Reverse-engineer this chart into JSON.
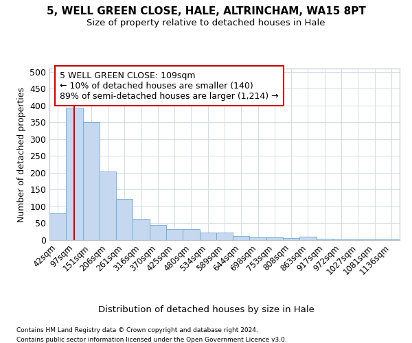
{
  "title1": "5, WELL GREEN CLOSE, HALE, ALTRINCHAM, WA15 8PT",
  "title2": "Size of property relative to detached houses in Hale",
  "xlabel": "Distribution of detached houses by size in Hale",
  "ylabel": "Number of detached properties",
  "footnote1": "Contains HM Land Registry data © Crown copyright and database right 2024.",
  "footnote2": "Contains public sector information licensed under the Open Government Licence v3.0.",
  "bar_labels": [
    "42sqm",
    "97sqm",
    "151sqm",
    "206sqm",
    "261sqm",
    "316sqm",
    "370sqm",
    "425sqm",
    "480sqm",
    "534sqm",
    "589sqm",
    "644sqm",
    "698sqm",
    "753sqm",
    "808sqm",
    "863sqm",
    "917sqm",
    "972sqm",
    "1027sqm",
    "1081sqm",
    "1136sqm"
  ],
  "bar_values": [
    80,
    393,
    350,
    205,
    122,
    63,
    45,
    32,
    32,
    22,
    23,
    13,
    9,
    9,
    7,
    10,
    4,
    3,
    2,
    2,
    3
  ],
  "bar_color": "#c5d8ef",
  "bar_edge_color": "#6aaad4",
  "ylim": [
    0,
    510
  ],
  "yticks": [
    0,
    50,
    100,
    150,
    200,
    250,
    300,
    350,
    400,
    450,
    500
  ],
  "grid_color": "#d0dce8",
  "annotation_text": "5 WELL GREEN CLOSE: 109sqm\n← 10% of detached houses are smaller (140)\n89% of semi-detached houses are larger (1,214) →",
  "property_bar_index": 1,
  "vline_color": "#cc0000",
  "annotation_box_edge_color": "#cc0000",
  "background_color": "#ffffff"
}
